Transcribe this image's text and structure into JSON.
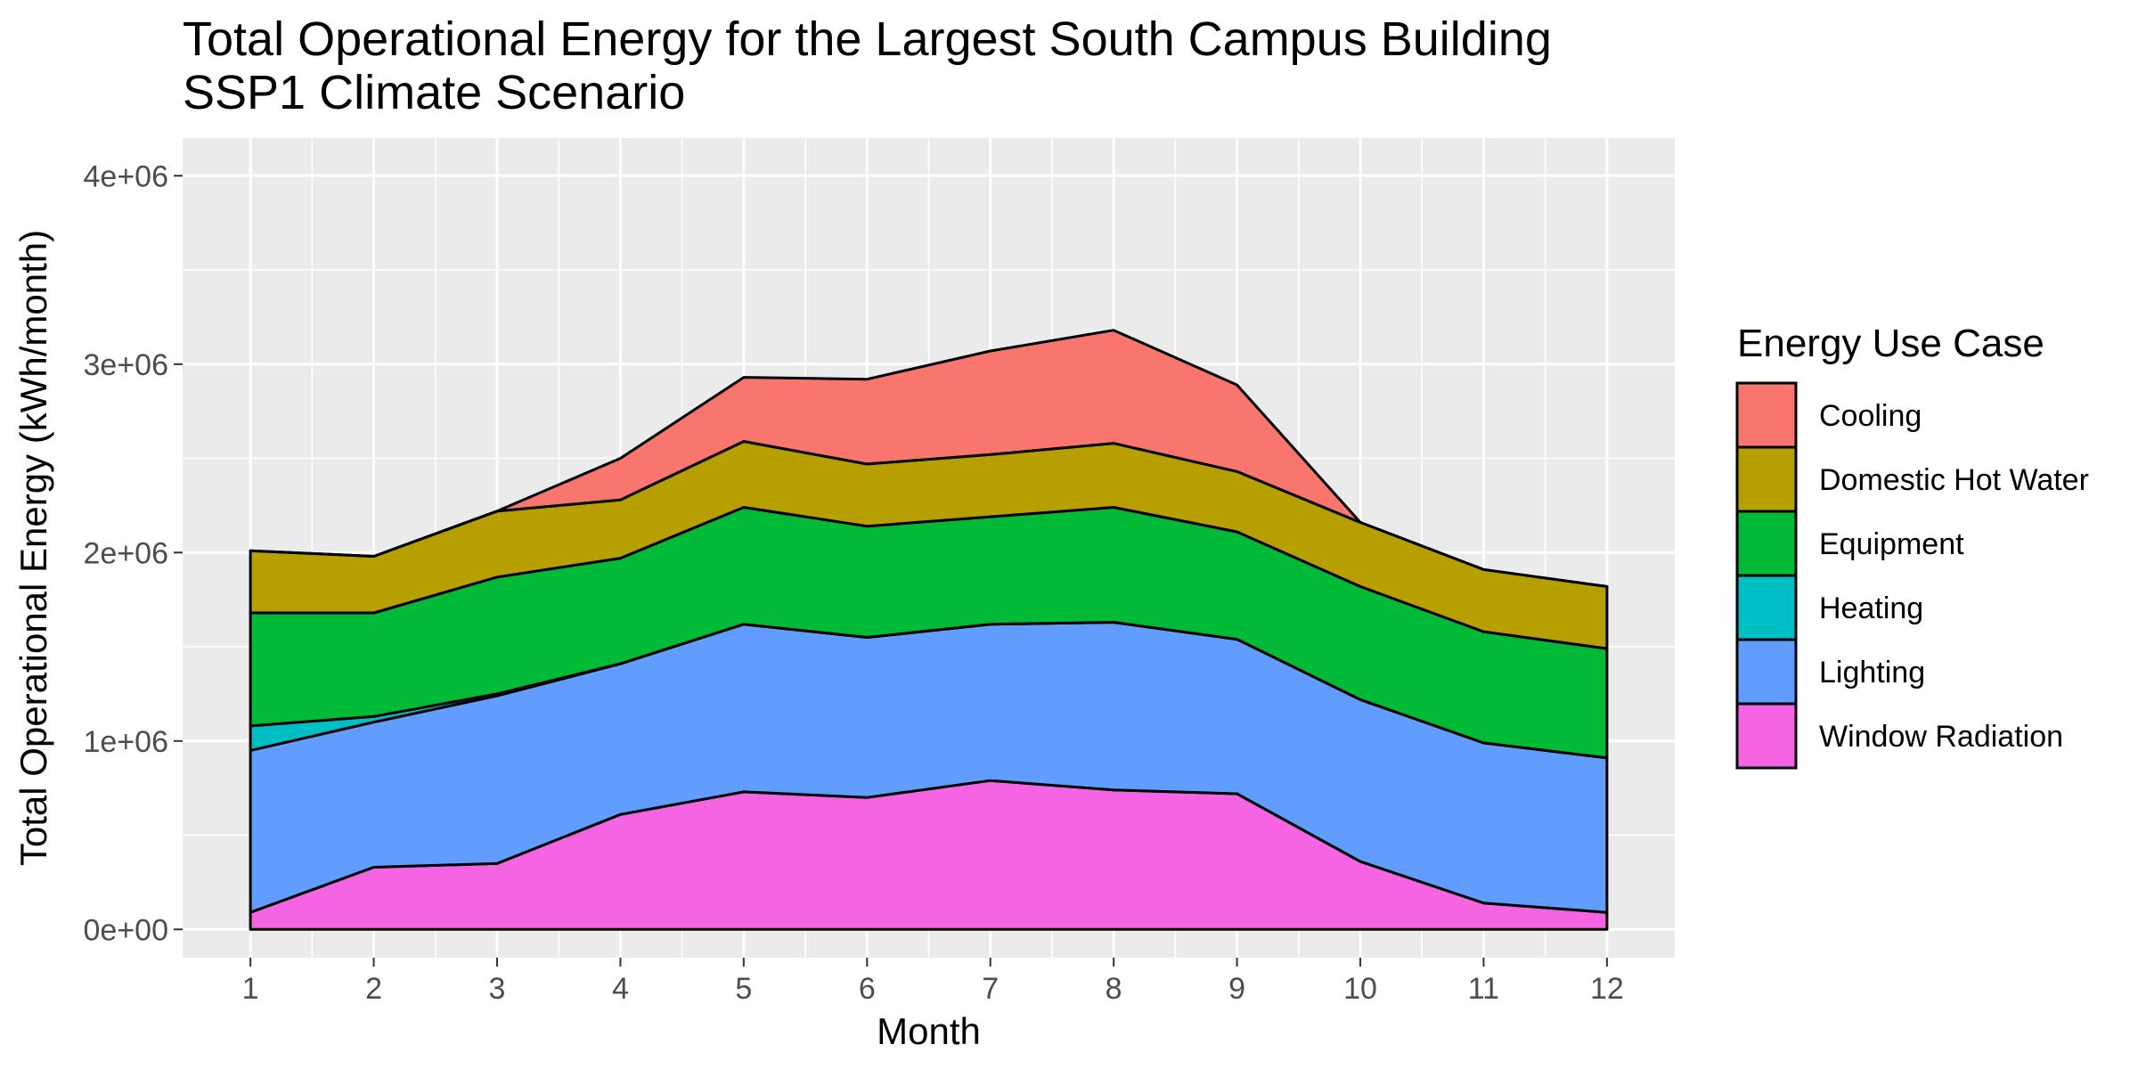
{
  "chart_data": {
    "type": "area",
    "stacked": true,
    "title": "Total Operational Energy for the Largest South Campus Building",
    "subtitle": "SSP1 Climate Scenario",
    "xlabel": "Month",
    "ylabel": "Total Operational Energy (kWh/month)",
    "x": [
      1,
      2,
      3,
      4,
      5,
      6,
      7,
      8,
      9,
      10,
      11,
      12
    ],
    "x_tick_labels": [
      "1",
      "2",
      "3",
      "4",
      "5",
      "6",
      "7",
      "8",
      "9",
      "10",
      "11",
      "12"
    ],
    "xlim": [
      0.45,
      12.55
    ],
    "ylim": [
      -150000,
      4200000
    ],
    "y_ticks": [
      0,
      1000000,
      2000000,
      3000000,
      4000000
    ],
    "y_tick_labels": [
      "0e+00",
      "1e+06",
      "2e+06",
      "3e+06",
      "4e+06"
    ],
    "grid": true,
    "legend_title": "Energy Use Case",
    "legend_position": "right",
    "stack_order_bottom_to_top": [
      "Window Radiation",
      "Lighting",
      "Heating",
      "Equipment",
      "Domestic Hot Water",
      "Cooling"
    ],
    "series": [
      {
        "name": "Cooling",
        "color": "#F8766D",
        "values": [
          0,
          0,
          0,
          220000,
          340000,
          450000,
          550000,
          600000,
          460000,
          0,
          0,
          0
        ]
      },
      {
        "name": "Domestic Hot Water",
        "color": "#B79F00",
        "values": [
          330000,
          300000,
          350000,
          310000,
          350000,
          330000,
          330000,
          340000,
          320000,
          340000,
          330000,
          330000
        ]
      },
      {
        "name": "Equipment",
        "color": "#00BA38",
        "values": [
          600000,
          550000,
          620000,
          560000,
          620000,
          590000,
          570000,
          610000,
          570000,
          600000,
          590000,
          580000
        ]
      },
      {
        "name": "Heating",
        "color": "#00BFC4",
        "values": [
          130000,
          30000,
          10000,
          0,
          0,
          0,
          0,
          0,
          0,
          0,
          0,
          0
        ]
      },
      {
        "name": "Lighting",
        "color": "#619CFF",
        "values": [
          860000,
          770000,
          890000,
          800000,
          890000,
          850000,
          830000,
          890000,
          820000,
          860000,
          850000,
          820000
        ]
      },
      {
        "name": "Window Radiation",
        "color": "#F564E3",
        "values": [
          90000,
          330000,
          350000,
          610000,
          730000,
          700000,
          790000,
          740000,
          720000,
          360000,
          140000,
          90000
        ]
      }
    ]
  }
}
